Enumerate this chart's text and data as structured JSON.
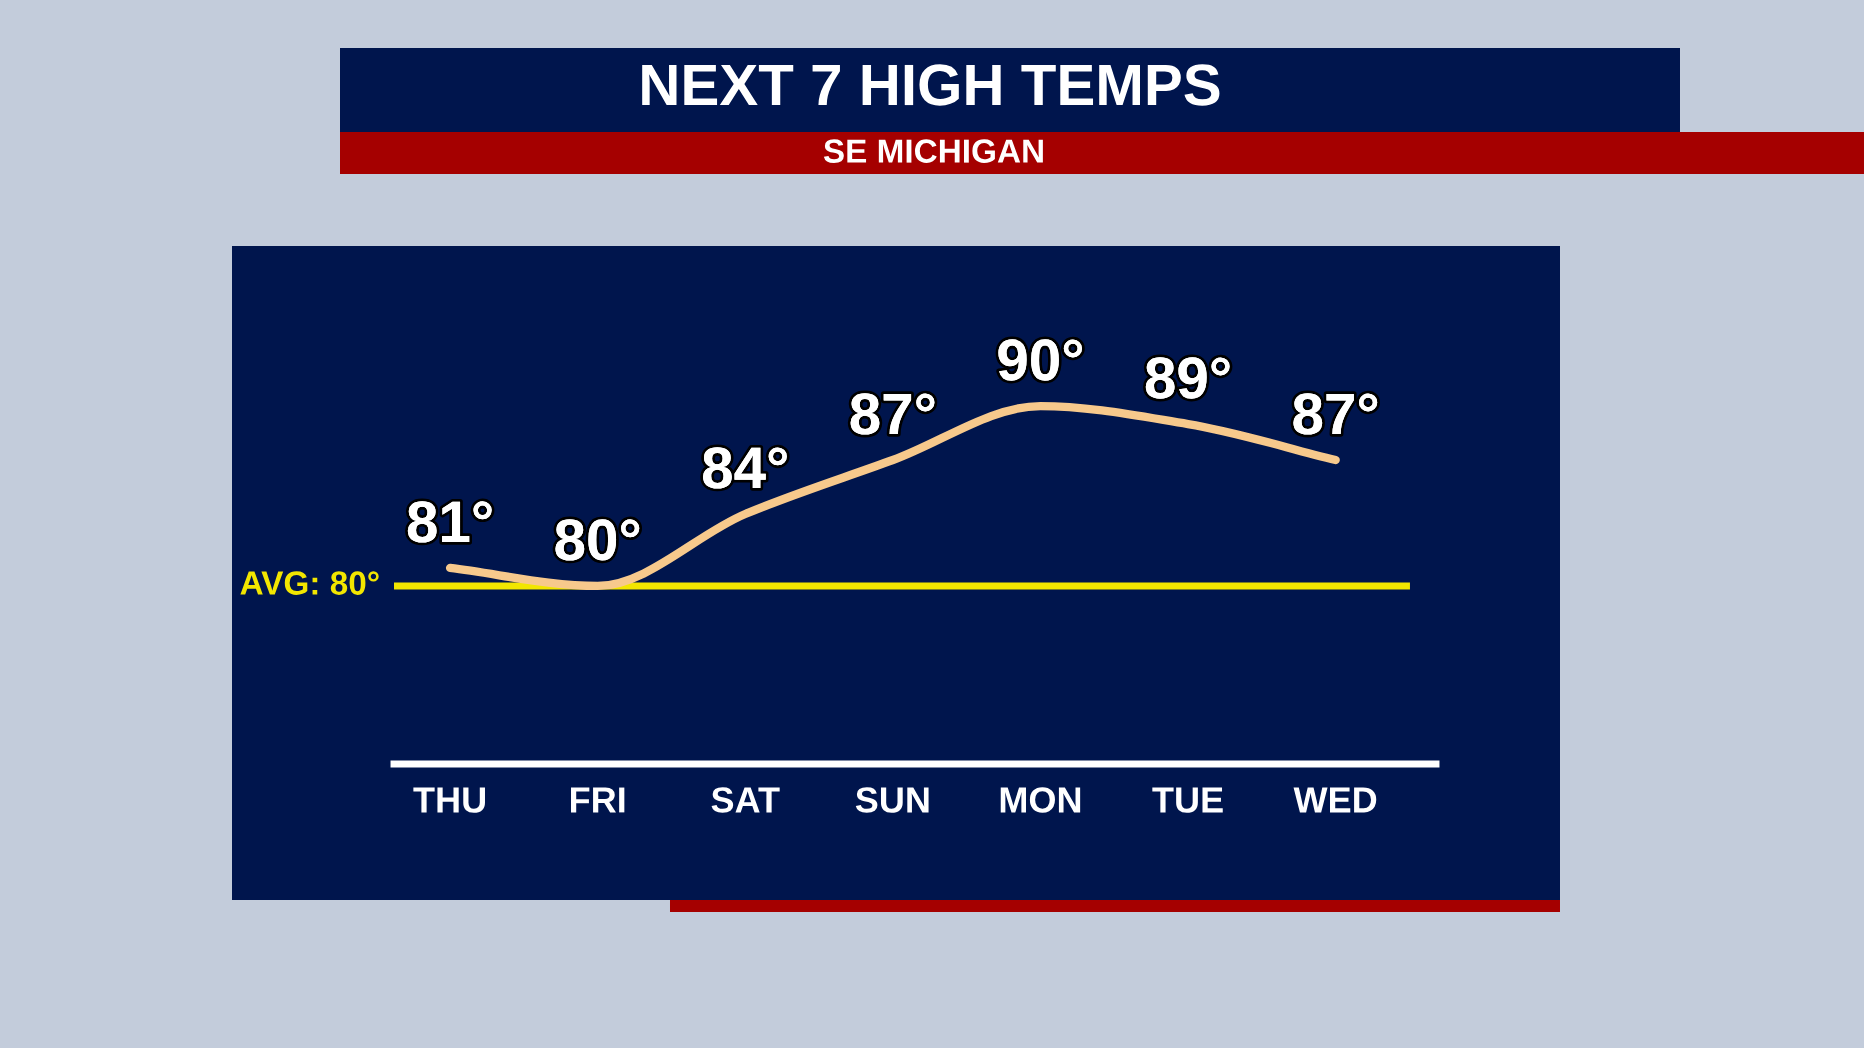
{
  "chart_data": {
    "type": "line",
    "title": "NEXT 7 HIGH TEMPS",
    "subtitle": "SE MICHIGAN",
    "categories": [
      "THU",
      "FRI",
      "SAT",
      "SUN",
      "MON",
      "TUE",
      "WED"
    ],
    "series": [
      {
        "color": "#f7c98c",
        "values": [
          81,
          80,
          84,
          87,
          90,
          89,
          87
        ],
        "value_labels": [
          "81°",
          "80°",
          "84°",
          "87°",
          "90°",
          "89°",
          "87°"
        ]
      }
    ],
    "ref_lines": [
      {
        "axis": "y",
        "value": 80,
        "label": "AVG: 80°",
        "color": "#f2e600"
      }
    ],
    "grid": false,
    "legend": false,
    "marker": "none",
    "line_style": "solid"
  }
}
